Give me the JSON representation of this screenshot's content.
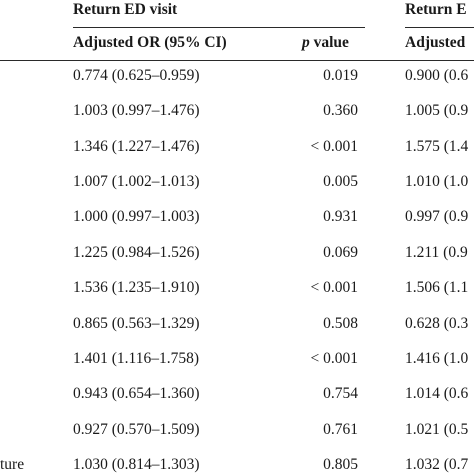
{
  "header": {
    "group1_title": "Return ED visit",
    "group2_title_partial": "Return E",
    "col_or_label": "Adjusted OR (95% CI)",
    "col_p_italic": "p",
    "col_p_rest": " value",
    "col_or2_partial": "Adjusted"
  },
  "left_label_partial": "ture",
  "rows": [
    {
      "or1": "0.774 (0.625–0.959)",
      "p1": "0.019",
      "or2": "0.900 (0.6"
    },
    {
      "or1": "1.003 (0.997–1.476)",
      "p1": "0.360",
      "or2": "1.005 (0.9"
    },
    {
      "or1": "1.346 (1.227–1.476)",
      "p1": "< 0.001",
      "or2": "1.575 (1.4"
    },
    {
      "or1": "1.007 (1.002–1.013)",
      "p1": "0.005",
      "or2": "1.010 (1.0"
    },
    {
      "or1": "1.000 (0.997–1.003)",
      "p1": "0.931",
      "or2": "0.997 (0.9"
    },
    {
      "or1": "1.225 (0.984–1.526)",
      "p1": "0.069",
      "or2": "1.211 (0.9"
    },
    {
      "or1": "1.536 (1.235–1.910)",
      "p1": "< 0.001",
      "or2": "1.506 (1.1"
    },
    {
      "or1": "0.865 (0.563–1.329)",
      "p1": "0.508",
      "or2": "0.628 (0.3"
    },
    {
      "or1": "1.401 (1.116–1.758)",
      "p1": "< 0.001",
      "or2": "1.416 (1.0"
    },
    {
      "or1": "0.943 (0.654–1.360)",
      "p1": "0.754",
      "or2": "1.014 (0.6"
    },
    {
      "or1": "0.927 (0.570–1.509)",
      "p1": "0.761",
      "or2": "1.021 (0.5"
    },
    {
      "or1": "1.030 (0.814–1.303)",
      "p1": "0.805",
      "or2": "1.032 (0.7"
    }
  ]
}
